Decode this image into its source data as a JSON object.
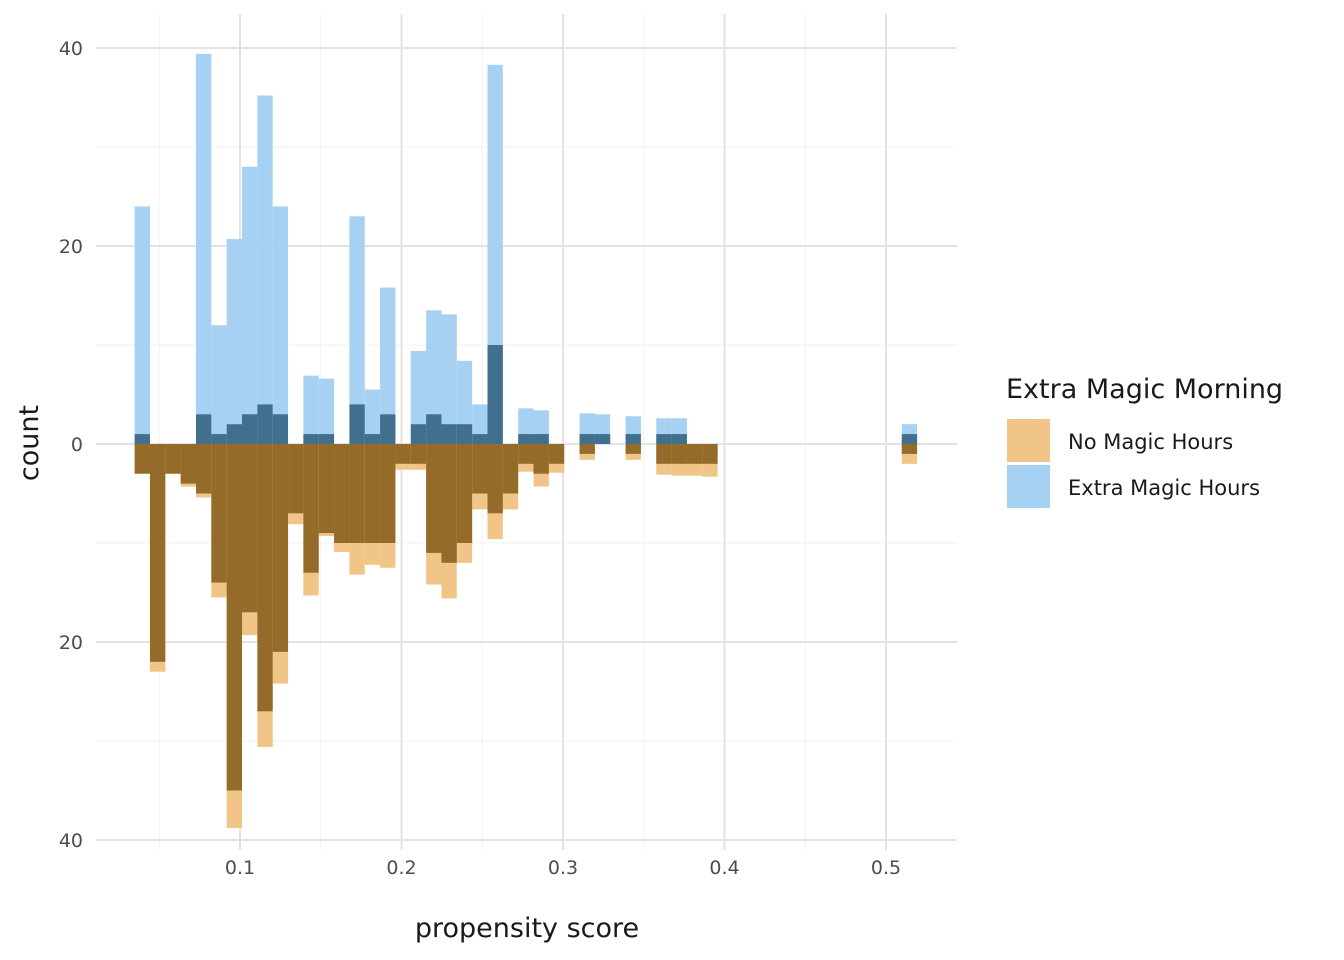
{
  "chart_data": {
    "type": "bar",
    "subtype": "mirrored histogram",
    "xlabel": "propensity score",
    "ylabel": "count",
    "x_ticks": [
      "0.1",
      "0.2",
      "0.3",
      "0.4",
      "0.5"
    ],
    "y_ticks": [
      "40",
      "20",
      "0",
      "20",
      "40"
    ],
    "xlim": [
      0.0225,
      0.5425
    ],
    "ylim": [
      -40,
      40
    ],
    "bin_width": 0.0095,
    "grid": true,
    "legend": {
      "title": "Extra Magic Morning",
      "position": "right",
      "entries": [
        {
          "label": "No Magic Hours",
          "color": "#F0C587"
        },
        {
          "label": "Extra Magic Hours",
          "color": "#A6D1F2"
        }
      ]
    },
    "colors": {
      "extra_unweighted": "#A6D1F2",
      "extra_weighted": "#41708F",
      "no_unweighted": "#F0C587",
      "no_weighted": "#946B29"
    },
    "bins": [
      0.0395,
      0.049,
      0.0585,
      0.068,
      0.0775,
      0.087,
      0.0965,
      0.106,
      0.1155,
      0.125,
      0.1345,
      0.144,
      0.1535,
      0.163,
      0.1725,
      0.182,
      0.1915,
      0.201,
      0.2105,
      0.22,
      0.2295,
      0.239,
      0.2485,
      0.258,
      0.2675,
      0.277,
      0.2865,
      0.296,
      0.3055,
      0.315,
      0.3245,
      0.334,
      0.3435,
      0.353,
      0.3625,
      0.372,
      0.3815,
      0.391,
      0.4005,
      0.41,
      0.4195,
      0.429,
      0.4385,
      0.448,
      0.4575,
      0.467,
      0.4765,
      0.486,
      0.4955,
      0.505,
      0.5145
    ],
    "series": [
      {
        "name": "Extra Magic Hours",
        "variant": "unweighted",
        "values": [
          24,
          0,
          0,
          0,
          39.4,
          12,
          20.7,
          28,
          35.2,
          24,
          0,
          6.9,
          6.6,
          0,
          23,
          5.5,
          15.8,
          0,
          9.4,
          13.5,
          13.1,
          8.4,
          4,
          38.3,
          0,
          3.6,
          3.4,
          0,
          0,
          3.1,
          3,
          0,
          2.8,
          0,
          2.6,
          2.6,
          0,
          0,
          0,
          0,
          0,
          0,
          0,
          0,
          0,
          0,
          0,
          0,
          0,
          0,
          2
        ]
      },
      {
        "name": "Extra Magic Hours",
        "variant": "weighted",
        "values": [
          1,
          0,
          0,
          0,
          3,
          1,
          2,
          3,
          4,
          3,
          0,
          1,
          1,
          0,
          4,
          1,
          3,
          0,
          2,
          3,
          2,
          2,
          1,
          10,
          0,
          1,
          1,
          0,
          0,
          1,
          1,
          0,
          1,
          0,
          1,
          1,
          0,
          0,
          0,
          0,
          0,
          0,
          0,
          0,
          0,
          0,
          0,
          0,
          0,
          0,
          1
        ]
      },
      {
        "name": "No Magic Hours",
        "variant": "unweighted",
        "values": [
          3,
          23,
          3,
          4.3,
          5.4,
          15.5,
          38.8,
          19.3,
          30.6,
          24.2,
          8.1,
          15.3,
          9.3,
          10.9,
          13.2,
          12.2,
          12.5,
          2.6,
          2.6,
          14.2,
          15.6,
          12,
          6.6,
          9.6,
          6.6,
          2.8,
          4.3,
          2.9,
          0,
          1.6,
          0,
          0,
          1.6,
          0,
          3.1,
          3.2,
          3.2,
          3.3,
          0,
          0,
          0,
          0,
          0,
          0,
          0,
          0,
          0,
          0,
          0,
          0,
          2
        ]
      },
      {
        "name": "No Magic Hours",
        "variant": "weighted",
        "values": [
          3,
          22,
          3,
          4,
          5,
          14,
          35,
          17,
          27,
          21,
          7,
          13,
          9,
          10,
          10,
          10,
          10,
          2,
          2,
          11,
          12,
          10,
          5,
          7,
          5,
          2,
          3,
          2,
          0,
          1,
          0,
          0,
          1,
          0,
          2,
          2,
          2,
          2,
          0,
          0,
          0,
          0,
          0,
          0,
          0,
          0,
          0,
          0,
          0,
          0,
          1
        ]
      }
    ]
  }
}
